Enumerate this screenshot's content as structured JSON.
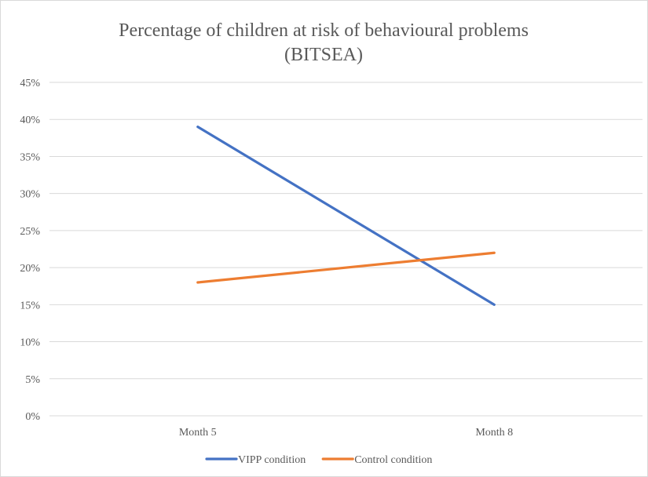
{
  "chart_data": {
    "type": "line",
    "title": "Percentage of children at risk of behavioural problems",
    "subtitle": "(BITSEA)",
    "xlabel": "",
    "ylabel": "",
    "categories": [
      "Month 5",
      "Month 8"
    ],
    "ylim": [
      0,
      0.45
    ],
    "yticks": [
      0,
      0.05,
      0.1,
      0.15,
      0.2,
      0.25,
      0.3,
      0.35,
      0.4,
      0.45
    ],
    "ytick_labels": [
      "0%",
      "5%",
      "10%",
      "15%",
      "20%",
      "25%",
      "30%",
      "35%",
      "40%",
      "45%"
    ],
    "grid": true,
    "legend_position": "bottom",
    "series": [
      {
        "name": "VIPP condition",
        "values": [
          0.39,
          0.15
        ],
        "color": "#4472c4"
      },
      {
        "name": "Control condition",
        "values": [
          0.18,
          0.22
        ],
        "color": "#ed7d31"
      }
    ]
  },
  "colors": {
    "grid": "#d9d9d9",
    "text": "#595959",
    "border": "#d9d9d9"
  }
}
